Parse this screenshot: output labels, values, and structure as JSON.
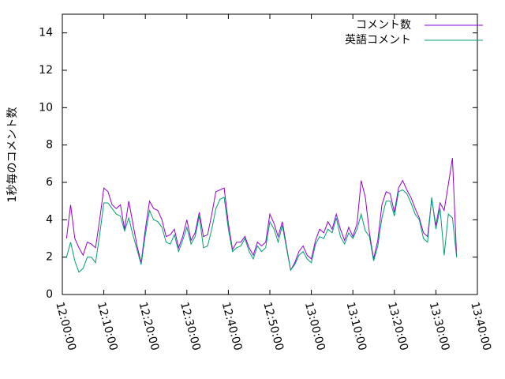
{
  "chart_data": {
    "type": "line",
    "y_label": "1秒毎のコメント数",
    "x": [
      "12:01:00",
      "12:02:00",
      "12:03:00",
      "12:04:00",
      "12:05:00",
      "12:06:00",
      "12:07:00",
      "12:08:00",
      "12:09:00",
      "12:10:00",
      "12:11:00",
      "12:12:00",
      "12:13:00",
      "12:14:00",
      "12:15:00",
      "12:16:00",
      "12:17:00",
      "12:18:00",
      "12:19:00",
      "12:20:00",
      "12:21:00",
      "12:22:00",
      "12:23:00",
      "12:24:00",
      "12:25:00",
      "12:26:00",
      "12:27:00",
      "12:28:00",
      "12:29:00",
      "12:30:00",
      "12:31:00",
      "12:32:00",
      "12:33:00",
      "12:34:00",
      "12:35:00",
      "12:36:00",
      "12:37:00",
      "12:38:00",
      "12:39:00",
      "12:40:00",
      "12:41:00",
      "12:42:00",
      "12:43:00",
      "12:44:00",
      "12:45:00",
      "12:46:00",
      "12:47:00",
      "12:48:00",
      "12:49:00",
      "12:50:00",
      "12:51:00",
      "12:52:00",
      "12:53:00",
      "12:54:00",
      "12:55:00",
      "12:56:00",
      "12:57:00",
      "12:58:00",
      "12:59:00",
      "13:00:00",
      "13:01:00",
      "13:02:00",
      "13:03:00",
      "13:04:00",
      "13:05:00",
      "13:06:00",
      "13:07:00",
      "13:08:00",
      "13:09:00",
      "13:10:00",
      "13:11:00",
      "13:12:00",
      "13:13:00",
      "13:14:00",
      "13:15:00",
      "13:16:00",
      "13:17:00",
      "13:18:00",
      "13:19:00",
      "13:20:00",
      "13:21:00",
      "13:22:00",
      "13:23:00",
      "13:24:00",
      "13:25:00",
      "13:26:00",
      "13:27:00",
      "13:28:00",
      "13:29:00",
      "13:30:00",
      "13:31:00",
      "13:32:00",
      "13:33:00",
      "13:34:00",
      "13:35:00"
    ],
    "series": [
      {
        "name": "コメント数",
        "color": "#9400d3",
        "values": [
          3.0,
          4.8,
          3.0,
          2.5,
          2.1,
          2.8,
          2.7,
          2.5,
          4.0,
          5.7,
          5.5,
          4.8,
          4.6,
          4.8,
          3.5,
          5.0,
          3.8,
          2.6,
          1.7,
          3.5,
          5.0,
          4.6,
          4.5,
          4.0,
          3.1,
          3.2,
          3.5,
          2.5,
          3.1,
          4.0,
          2.9,
          3.3,
          4.4,
          3.1,
          3.2,
          4.3,
          5.5,
          5.6,
          5.7,
          3.8,
          2.4,
          2.8,
          2.8,
          3.1,
          2.5,
          2.1,
          2.8,
          2.6,
          2.8,
          4.3,
          3.8,
          3.1,
          3.9,
          2.6,
          1.3,
          1.7,
          2.3,
          2.6,
          2.1,
          1.9,
          2.9,
          3.5,
          3.3,
          3.9,
          3.5,
          4.3,
          3.5,
          2.9,
          3.6,
          3.1,
          3.8,
          6.1,
          5.2,
          3.3,
          1.9,
          2.9,
          4.8,
          5.5,
          5.4,
          4.4,
          5.7,
          6.1,
          5.6,
          5.2,
          4.6,
          4.1,
          3.3,
          3.1,
          5.1,
          3.7,
          4.9,
          4.5,
          5.9,
          7.3,
          2.0
        ]
      },
      {
        "name": "英語コメント",
        "color": "#009e73",
        "values": [
          2.0,
          2.8,
          1.8,
          1.2,
          1.4,
          2.0,
          2.0,
          1.7,
          3.2,
          4.9,
          4.9,
          4.6,
          4.3,
          4.2,
          3.4,
          4.1,
          3.2,
          2.4,
          1.6,
          3.2,
          4.5,
          4.0,
          3.9,
          3.6,
          2.8,
          2.7,
          3.2,
          2.3,
          2.9,
          3.6,
          2.7,
          3.1,
          4.2,
          2.5,
          2.6,
          3.5,
          4.6,
          5.1,
          5.2,
          3.5,
          2.3,
          2.5,
          2.6,
          3.0,
          2.3,
          1.9,
          2.6,
          2.3,
          2.5,
          3.9,
          3.5,
          2.8,
          3.7,
          2.5,
          1.3,
          1.6,
          2.1,
          2.3,
          1.9,
          1.7,
          2.7,
          3.1,
          3.0,
          3.5,
          3.3,
          4.1,
          3.1,
          2.7,
          3.3,
          3.0,
          3.5,
          4.3,
          3.4,
          3.1,
          1.8,
          2.6,
          4.1,
          5.0,
          5.0,
          4.2,
          5.5,
          5.6,
          5.4,
          4.9,
          4.3,
          4.0,
          3.0,
          2.8,
          5.2,
          3.5,
          4.6,
          2.1,
          4.3,
          4.1,
          2.0
        ]
      }
    ],
    "xlim": [
      "12:00:00",
      "13:40:00"
    ],
    "xticks": [
      "12:00:00",
      "12:10:00",
      "12:20:00",
      "12:30:00",
      "12:40:00",
      "12:50:00",
      "13:00:00",
      "13:10:00",
      "13:20:00",
      "13:30:00",
      "13:40:00"
    ],
    "ylim": [
      0,
      15
    ],
    "yticks": [
      0,
      2,
      4,
      6,
      8,
      10,
      12,
      14
    ],
    "legend": "top-right"
  }
}
